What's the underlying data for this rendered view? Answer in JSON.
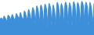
{
  "chart_data": {
    "type": "area",
    "color": "#3d8fd9",
    "tick_labels": false,
    "grid": false,
    "ylim": [
      0,
      100
    ],
    "values": [
      45,
      50,
      42,
      55,
      48,
      40,
      58,
      52,
      45,
      60,
      50,
      44,
      62,
      55,
      48,
      65,
      52,
      46,
      70,
      58,
      45,
      75,
      60,
      40,
      80,
      70,
      35,
      85,
      72,
      30,
      88,
      75,
      28,
      90,
      78,
      25,
      92,
      80,
      30,
      88,
      70,
      28,
      95,
      82,
      30,
      92,
      78,
      26,
      96,
      85,
      32,
      94,
      80,
      28,
      97,
      86,
      30,
      95,
      82,
      25,
      98,
      88,
      35,
      96,
      84,
      30,
      95,
      80,
      40,
      92
    ]
  }
}
